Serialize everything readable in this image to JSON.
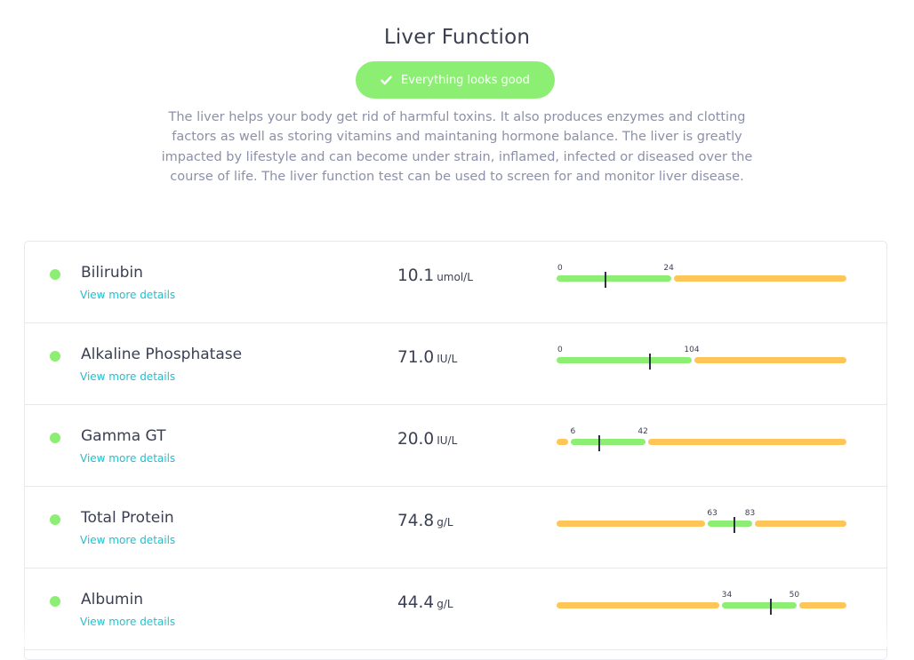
{
  "page": {
    "title": "Liver Function",
    "status_badge": {
      "label": "Everything looks good",
      "icon": "check-icon",
      "color": "#8cef73"
    },
    "description": "The liver helps your body get rid of harmful toxins. It also produces enzymes and clotting factors as well as storing vitamins and maintaning hormone balance. The liver is greatly impacted by lifestyle and can become under strain, inflamed, infected or diseased over the course of life. The liver function test can be used to screen for and monitor liver disease."
  },
  "colors": {
    "in_range": "#8cef73",
    "out_of_range": "#fec658",
    "link": "#1cc2cf"
  },
  "biomarkers": [
    {
      "name": "Bilirubin",
      "link": "View more details",
      "value": "10.1",
      "unit": "umol/L",
      "scale_min": 0,
      "scale_max": 60,
      "result": 10.1,
      "thresholds": [
        "0",
        "24"
      ],
      "segments": [
        {
          "from": 0,
          "to": 24,
          "status": "in_range"
        },
        {
          "from": 24,
          "to": 60,
          "status": "out_of_range"
        }
      ]
    },
    {
      "name": "Alkaline Phosphatase",
      "link": "View more details",
      "value": "71.0",
      "unit": "IU/L",
      "scale_min": 0,
      "scale_max": 221,
      "result": 71.0,
      "thresholds": [
        "0",
        "104"
      ],
      "segments": [
        {
          "from": 0,
          "to": 104,
          "status": "in_range"
        },
        {
          "from": 104,
          "to": 221,
          "status": "out_of_range"
        }
      ]
    },
    {
      "name": "Gamma GT",
      "link": "View more details",
      "value": "20.0",
      "unit": "IU/L",
      "scale_min": 0,
      "scale_max": 135,
      "result": 20.0,
      "thresholds": [
        "6",
        "42"
      ],
      "segments": [
        {
          "from": 0,
          "to": 6,
          "status": "out_of_range"
        },
        {
          "from": 6,
          "to": 42,
          "status": "in_range"
        },
        {
          "from": 42,
          "to": 135,
          "status": "out_of_range"
        }
      ]
    },
    {
      "name": "Total Protein",
      "link": "View more details",
      "value": "74.8",
      "unit": "g/L",
      "scale_min": 0,
      "scale_max": 122,
      "result": 74.8,
      "thresholds": [
        "63",
        "83"
      ],
      "segments": [
        {
          "from": 0,
          "to": 63,
          "status": "out_of_range"
        },
        {
          "from": 63,
          "to": 83,
          "status": "in_range"
        },
        {
          "from": 83,
          "to": 122,
          "status": "out_of_range"
        }
      ]
    },
    {
      "name": "Albumin",
      "link": "View more details",
      "value": "44.4",
      "unit": "g/L",
      "scale_min": 0,
      "scale_max": 60,
      "result": 44.4,
      "thresholds": [
        "34",
        "50"
      ],
      "segments": [
        {
          "from": 0,
          "to": 34,
          "status": "out_of_range"
        },
        {
          "from": 34,
          "to": 50,
          "status": "in_range"
        },
        {
          "from": 50,
          "to": 60,
          "status": "out_of_range"
        }
      ]
    }
  ]
}
